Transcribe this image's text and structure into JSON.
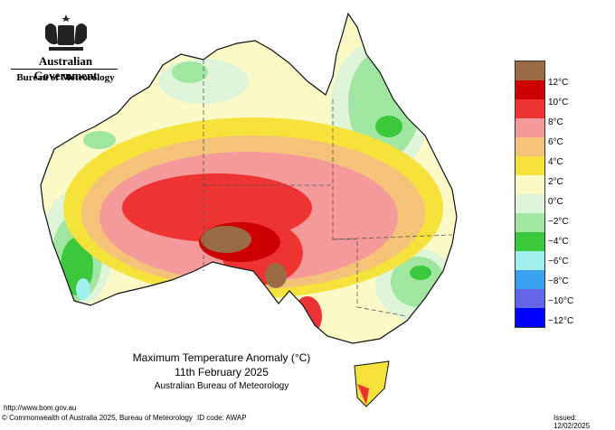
{
  "header": {
    "gov_name": "Australian Government",
    "bureau_name": "Bureau of Meteorology"
  },
  "map": {
    "title_line1": "Maximum Temperature Anomaly (°C)",
    "title_line2": "11th February 2025",
    "title_line3": "Australian Bureau of Meteorology"
  },
  "legend": {
    "items": [
      {
        "color": "#9a6b45"
      },
      {
        "label": "12°C",
        "color": "#cc0000"
      },
      {
        "label": "10°C",
        "color": "#ee3333"
      },
      {
        "label": "8°C",
        "color": "#f59a9a"
      },
      {
        "label": "6°C",
        "color": "#f5c27a"
      },
      {
        "label": "4°C",
        "color": "#f5e33c"
      },
      {
        "label": "2°C",
        "color": "#fbf9c6"
      },
      {
        "label": "0°C",
        "color": "#dff5da"
      },
      {
        "label": "−2°C",
        "color": "#a0e6a0"
      },
      {
        "label": "−4°C",
        "color": "#3cc83c"
      },
      {
        "label": "−6°C",
        "color": "#a0f0f0"
      },
      {
        "label": "−8°C",
        "color": "#3ca0f0"
      },
      {
        "label": "−10°C",
        "color": "#6464e6"
      },
      {
        "label": "−12°C",
        "color": "#0000ff"
      }
    ]
  },
  "footer": {
    "url": "http://www.bom.gov.au",
    "copyright": "© Commonwealth of Australia 2025, Bureau of Meteorology",
    "id_code": "ID code: AWAP",
    "issued": "Issued: 12/02/2025"
  }
}
